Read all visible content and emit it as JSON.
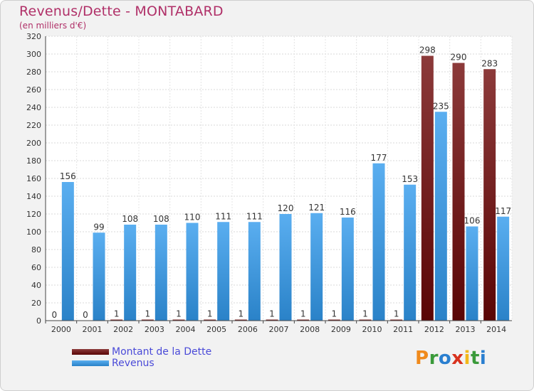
{
  "header": {
    "title": "Revenus/Dette - MONTABARD",
    "subtitle": "(en milliers d'€)"
  },
  "colors": {
    "dette": "#6a1010",
    "revenus": "#3e9ee8"
  },
  "chart_data": {
    "type": "bar",
    "title": "Revenus/Dette - MONTABARD",
    "subtitle": "(en milliers d'€)",
    "categories": [
      "2000",
      "2001",
      "2002",
      "2003",
      "2004",
      "2005",
      "2006",
      "2007",
      "2008",
      "2009",
      "2010",
      "2011",
      "2012",
      "2013",
      "2014"
    ],
    "series": [
      {
        "name": "Montant de la Dette",
        "values": [
          0,
          0,
          1,
          1,
          1,
          1,
          1,
          1,
          1,
          1,
          1,
          1,
          298,
          290,
          283
        ]
      },
      {
        "name": "Revenus",
        "values": [
          156,
          99,
          108,
          108,
          110,
          111,
          111,
          120,
          121,
          116,
          177,
          153,
          235,
          106,
          117
        ]
      }
    ],
    "ylim": [
      0,
      320
    ],
    "yticks": [
      0,
      20,
      40,
      60,
      80,
      100,
      120,
      140,
      160,
      180,
      200,
      220,
      240,
      260,
      280,
      300,
      320
    ],
    "grid": true,
    "legend": "bottom-left"
  },
  "legend": {
    "items": [
      {
        "label": "Montant de la Dette",
        "color": "#6a1010"
      },
      {
        "label": "Revenus",
        "color": "#3e9ee8"
      }
    ]
  },
  "logo": {
    "letters": [
      "P",
      "r",
      "o",
      "x",
      "i",
      "t",
      "i"
    ],
    "letter_colors": [
      "#f08a1c",
      "#3a9a3a",
      "#2a7fd0",
      "#d8321e",
      "#f2b81a",
      "#3a9a3a",
      "#2a7fd0"
    ]
  }
}
